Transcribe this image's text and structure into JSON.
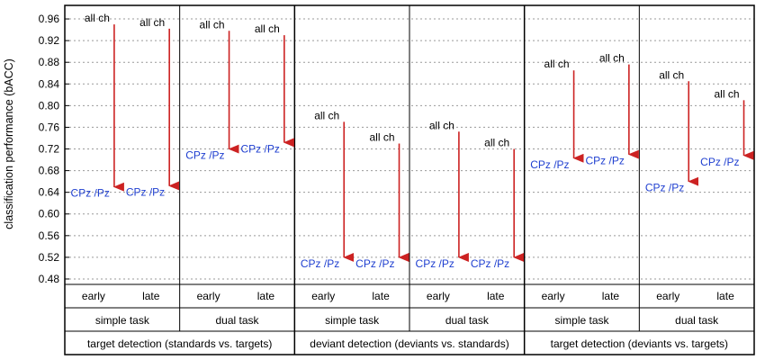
{
  "chart_data": {
    "type": "arrow",
    "ylabel": "classification performance (bACC)",
    "ylim": [
      0.47,
      0.985
    ],
    "yticks": [
      "0.48",
      "0.52",
      "0.56",
      "0.60",
      "0.64",
      "0.68",
      "0.72",
      "0.76",
      "0.80",
      "0.84",
      "0.88",
      "0.92",
      "0.96"
    ],
    "grid": "horizontal dotted",
    "start_label": "all ch",
    "end_label": "CPz /Pz",
    "colors": {
      "arrow": "#cc2222",
      "end_label": "#1f3fd0",
      "text": "#000000"
    },
    "groups": [
      {
        "label": "target detection (standards vs. targets)",
        "span": [
          0,
          2
        ]
      },
      {
        "label": "deviant detection (deviants vs. standards)",
        "span": [
          2,
          4
        ]
      },
      {
        "label": "target detection (deviants vs. targets)",
        "span": [
          4,
          6
        ]
      }
    ],
    "panels": [
      {
        "label": "simple task",
        "series": [
          {
            "time": "early",
            "all_ch": 0.95,
            "cpz_pz": 0.63
          },
          {
            "time": "late",
            "all_ch": 0.942,
            "cpz_pz": 0.632
          }
        ]
      },
      {
        "label": "dual task",
        "series": [
          {
            "time": "early",
            "all_ch": 0.938,
            "cpz_pz": 0.7
          },
          {
            "time": "late",
            "all_ch": 0.93,
            "cpz_pz": 0.712
          }
        ]
      },
      {
        "label": "simple task",
        "series": [
          {
            "time": "early",
            "all_ch": 0.77,
            "cpz_pz": 0.5
          },
          {
            "time": "late",
            "all_ch": 0.73,
            "cpz_pz": 0.5
          }
        ]
      },
      {
        "label": "dual task",
        "series": [
          {
            "time": "early",
            "all_ch": 0.752,
            "cpz_pz": 0.5
          },
          {
            "time": "late",
            "all_ch": 0.72,
            "cpz_pz": 0.5
          }
        ]
      },
      {
        "label": "simple task",
        "series": [
          {
            "time": "early",
            "all_ch": 0.865,
            "cpz_pz": 0.683
          },
          {
            "time": "late",
            "all_ch": 0.876,
            "cpz_pz": 0.69
          }
        ]
      },
      {
        "label": "dual task",
        "series": [
          {
            "time": "early",
            "all_ch": 0.845,
            "cpz_pz": 0.64
          },
          {
            "time": "late",
            "all_ch": 0.81,
            "cpz_pz": 0.688
          }
        ]
      }
    ]
  }
}
